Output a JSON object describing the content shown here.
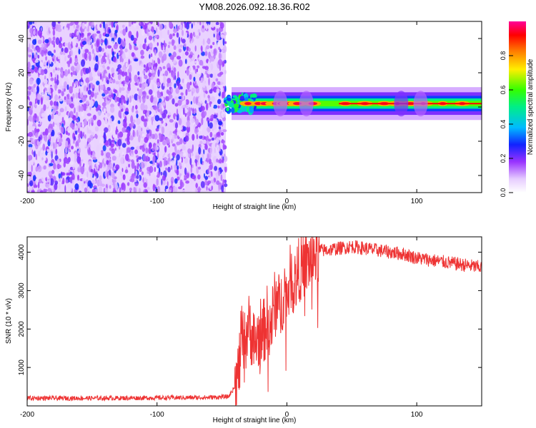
{
  "figure": {
    "title": "YM08.2026.092.18.36.R02"
  },
  "chart_data": [
    {
      "type": "heatmap",
      "name": "spectrogram",
      "xlabel": "Height of straight line (km)",
      "ylabel": "Frequency (Hz)",
      "xlim": [
        -200,
        150
      ],
      "ylim": [
        -50,
        50
      ],
      "xticks": [
        -200,
        -100,
        0,
        100
      ],
      "yticks": [
        -40,
        -20,
        0,
        20,
        40
      ],
      "xtick_labels": [
        "-200",
        "-100",
        "0",
        "100"
      ],
      "ytick_labels": [
        "-40",
        "-20",
        "0",
        "20",
        "40"
      ],
      "noise_region": {
        "x_start": -200,
        "x_end": -47,
        "level_range": [
          0.05,
          0.3
        ]
      },
      "signal_band": {
        "x_start": -47,
        "x_end": 150,
        "frequency_center": 2,
        "frequency_halfwidth": 3,
        "peak_level": 0.95
      },
      "colorbar": {
        "label": "Normalized spectral amplitude",
        "range": [
          0,
          1
        ],
        "ticks": [
          0.0,
          0.2,
          0.4,
          0.6,
          0.8
        ],
        "tick_labels": [
          "0.0",
          "0.2",
          "0.4",
          "0.6",
          "0.8"
        ],
        "colormap": "rainbow-white-violet-red-magenta"
      }
    },
    {
      "type": "line",
      "name": "snr",
      "xlabel": "Height of straight line (km)",
      "ylabel": "SNR (10 * v/v)",
      "xlim": [
        -200,
        150
      ],
      "ylim": [
        0,
        4400
      ],
      "xticks": [
        -200,
        -100,
        0,
        100
      ],
      "yticks": [
        1000,
        2000,
        3000,
        4000
      ],
      "xtick_labels": [
        "-200",
        "-100",
        "0",
        "100"
      ],
      "ytick_labels": [
        "1000",
        "2000",
        "3000",
        "4000"
      ],
      "color": "#ee3333",
      "series": [
        {
          "name": "SNR",
          "x": [
            -200,
            -150,
            -100,
            -60,
            -45,
            -40,
            -37,
            -35,
            -33,
            -30,
            -27,
            -25,
            -22,
            -20,
            -18,
            -15,
            -12,
            -10,
            -8,
            -5,
            -2,
            0,
            3,
            6,
            10,
            15,
            20,
            25,
            30,
            40,
            50,
            60,
            70,
            80,
            90,
            100,
            110,
            120,
            130,
            140,
            150
          ],
          "values": [
            200,
            200,
            210,
            220,
            240,
            500,
            900,
            1800,
            1500,
            2100,
            1900,
            1600,
            1800,
            2000,
            1900,
            2300,
            2100,
            2600,
            2700,
            2500,
            3100,
            2800,
            3400,
            3200,
            3600,
            3700,
            3900,
            4050,
            4050,
            4100,
            4150,
            4100,
            4050,
            4000,
            3950,
            3850,
            3800,
            3750,
            3700,
            3650,
            3600
          ]
        }
      ]
    }
  ]
}
